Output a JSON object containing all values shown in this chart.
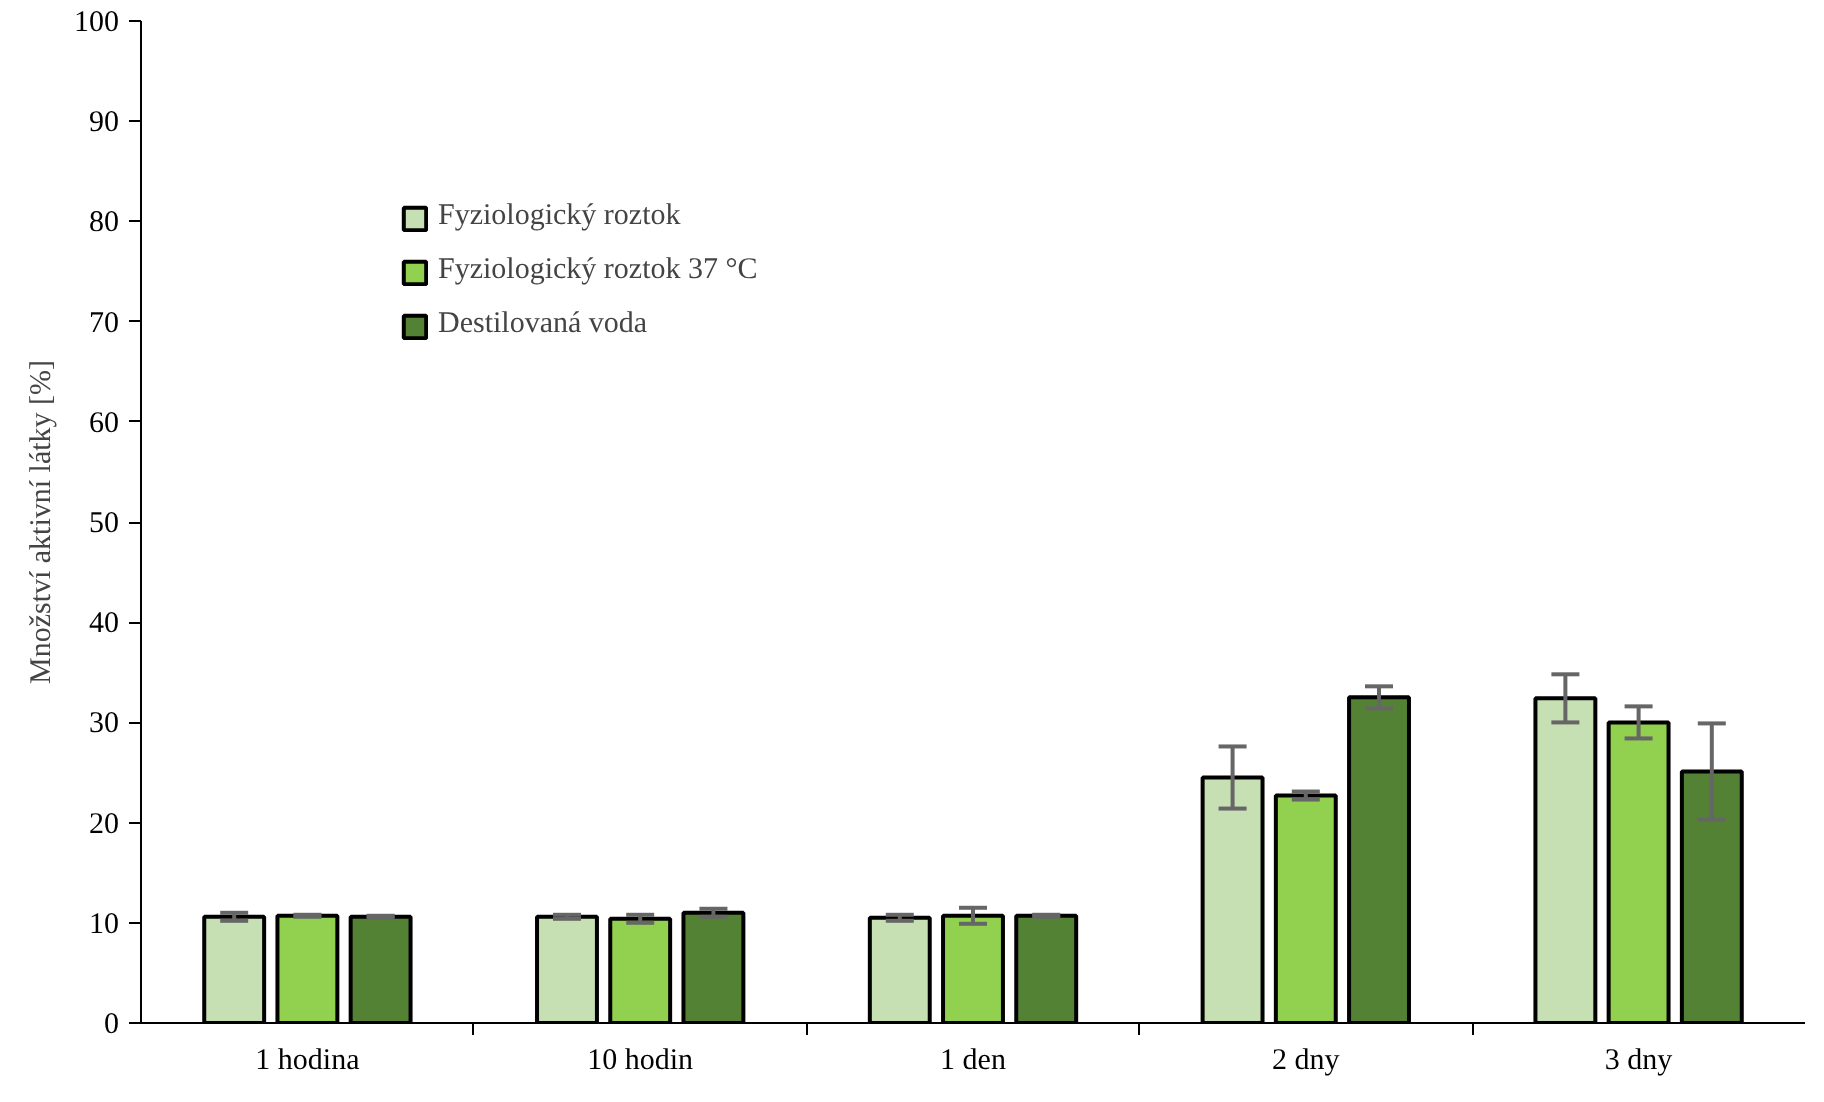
{
  "chart_data": {
    "type": "bar",
    "ylabel": "Množství aktivní látky [%]",
    "categories": [
      "1 hodina",
      "10 hodin",
      "1 den",
      "2 dny",
      "3 dny"
    ],
    "series": [
      {
        "name": "Fyziologický roztok",
        "color": "#c6e0b4",
        "values": [
          10.6,
          10.6,
          10.5,
          24.5,
          32.4
        ],
        "errors": [
          0.4,
          0.2,
          0.3,
          3.1,
          2.4
        ]
      },
      {
        "name": "Fyziologický roztok 37 °C",
        "color": "#92d050",
        "values": [
          10.7,
          10.4,
          10.7,
          22.7,
          30.0
        ],
        "errors": [
          0.1,
          0.4,
          0.8,
          0.4,
          1.6
        ]
      },
      {
        "name": "Destilovaná voda",
        "color": "#548235",
        "values": [
          10.6,
          11.0,
          10.7,
          32.5,
          25.1
        ],
        "errors": [
          0.1,
          0.4,
          0.1,
          1.1,
          4.8
        ]
      }
    ],
    "ylim": [
      0,
      100
    ],
    "yticks": [
      0,
      10,
      20,
      30,
      40,
      50,
      60,
      70,
      80,
      90,
      100
    ],
    "grid": false,
    "legend": "top left"
  }
}
